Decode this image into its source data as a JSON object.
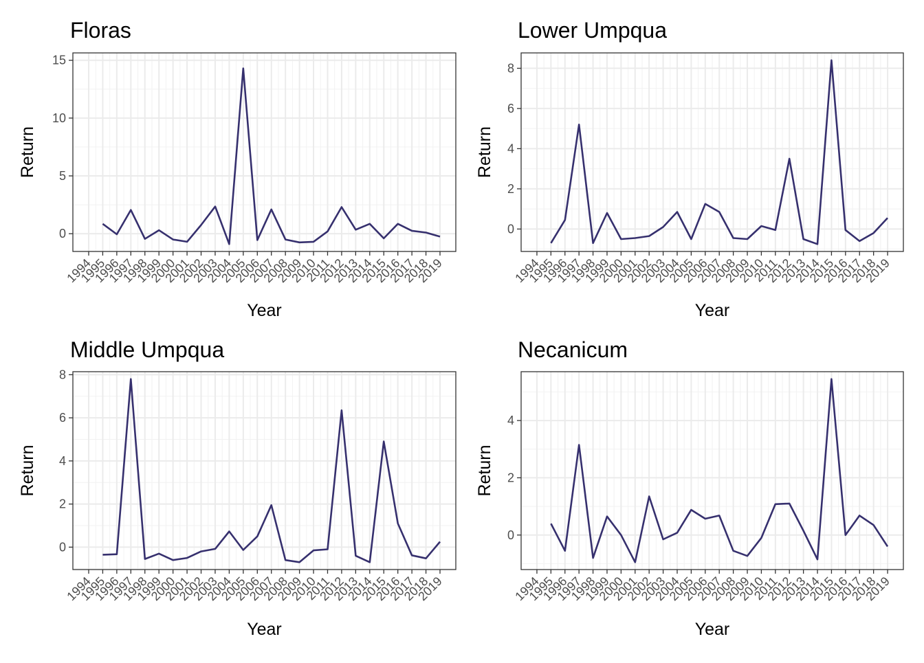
{
  "colors": {
    "line": "#36306e",
    "grid_major": "#ebebeb",
    "grid_minor": "#f2f2f2",
    "panel_border": "#333333",
    "tick_text": "#4d4d4d"
  },
  "x_ticks": [
    "1994",
    "1995",
    "1996",
    "1997",
    "1998",
    "1999",
    "2000",
    "2001",
    "2002",
    "2003",
    "2004",
    "2005",
    "2006",
    "2007",
    "2008",
    "2009",
    "2010",
    "2011",
    "2012",
    "2013",
    "2014",
    "2015",
    "2016",
    "2017",
    "2018",
    "2019"
  ],
  "chart_data": [
    {
      "type": "line",
      "title": "Floras",
      "xlabel": "Year",
      "ylabel": "Return",
      "xlim": [
        1994,
        2019
      ],
      "ylim": [
        -0.9,
        15
      ],
      "yticks": [
        0,
        5,
        10,
        15
      ],
      "grid": true,
      "x": [
        1995,
        1996,
        1997,
        1998,
        1999,
        2000,
        2001,
        2002,
        2003,
        2004,
        2005,
        2006,
        2007,
        2008,
        2009,
        2010,
        2011,
        2012,
        2013,
        2014,
        2015,
        2016,
        2017,
        2018,
        2019
      ],
      "series": [
        {
          "values": [
            0.85,
            -0.05,
            2.05,
            -0.45,
            0.3,
            -0.5,
            -0.7,
            0.75,
            2.35,
            -0.9,
            14.3,
            -0.55,
            2.1,
            -0.5,
            -0.75,
            -0.7,
            0.2,
            2.3,
            0.35,
            0.85,
            -0.4,
            0.85,
            0.25,
            0.1,
            -0.25
          ]
        }
      ]
    },
    {
      "type": "line",
      "title": "Lower Umpqua",
      "xlabel": "Year",
      "ylabel": "Return",
      "xlim": [
        1994,
        2019
      ],
      "ylim": [
        -0.75,
        8.4
      ],
      "yticks": [
        0,
        2,
        4,
        6,
        8
      ],
      "grid": true,
      "x": [
        1995,
        1996,
        1997,
        1998,
        1999,
        2000,
        2001,
        2002,
        2003,
        2004,
        2005,
        2006,
        2007,
        2008,
        2009,
        2010,
        2011,
        2012,
        2013,
        2014,
        2015,
        2016,
        2017,
        2018,
        2019
      ],
      "series": [
        {
          "values": [
            -0.7,
            0.45,
            5.2,
            -0.7,
            0.8,
            -0.5,
            -0.45,
            -0.35,
            0.1,
            0.85,
            -0.5,
            1.25,
            0.85,
            -0.45,
            -0.5,
            0.15,
            -0.05,
            3.5,
            -0.5,
            -0.75,
            8.4,
            -0.05,
            -0.6,
            -0.2,
            0.55
          ]
        }
      ]
    },
    {
      "type": "line",
      "title": "Middle Umpqua",
      "xlabel": "Year",
      "ylabel": "Return",
      "xlim": [
        1994,
        2019
      ],
      "ylim": [
        -0.7,
        7.8
      ],
      "yticks": [
        0,
        2,
        4,
        6,
        8
      ],
      "grid": true,
      "x": [
        1995,
        1996,
        1997,
        1998,
        1999,
        2000,
        2001,
        2002,
        2003,
        2004,
        2005,
        2006,
        2007,
        2008,
        2009,
        2010,
        2011,
        2012,
        2013,
        2014,
        2015,
        2016,
        2017,
        2018,
        2019
      ],
      "series": [
        {
          "values": [
            -0.35,
            -0.33,
            7.8,
            -0.55,
            -0.3,
            -0.6,
            -0.5,
            -0.2,
            -0.08,
            0.73,
            -0.13,
            0.5,
            1.95,
            -0.6,
            -0.7,
            -0.15,
            -0.1,
            6.35,
            -0.4,
            -0.7,
            4.9,
            1.1,
            -0.38,
            -0.52,
            0.25
          ]
        }
      ]
    },
    {
      "type": "line",
      "title": "Necanicum",
      "xlabel": "Year",
      "ylabel": "Return",
      "xlim": [
        1994,
        2019
      ],
      "ylim": [
        -0.95,
        5.45
      ],
      "yticks": [
        0,
        2,
        4
      ],
      "grid": true,
      "x": [
        1995,
        1996,
        1997,
        1998,
        1999,
        2000,
        2001,
        2002,
        2003,
        2004,
        2005,
        2006,
        2007,
        2008,
        2009,
        2010,
        2011,
        2012,
        2013,
        2014,
        2015,
        2016,
        2017,
        2018,
        2019
      ],
      "series": [
        {
          "values": [
            0.4,
            -0.55,
            3.15,
            -0.8,
            0.65,
            0.0,
            -0.95,
            1.35,
            -0.15,
            0.08,
            0.88,
            0.57,
            0.68,
            -0.55,
            -0.73,
            -0.1,
            1.08,
            1.1,
            0.15,
            -0.85,
            5.45,
            0.0,
            0.68,
            0.35,
            -0.4
          ]
        }
      ]
    }
  ]
}
